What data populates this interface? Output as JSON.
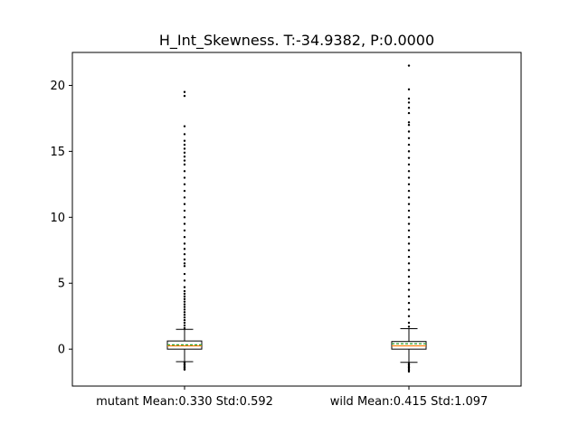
{
  "chart_data": {
    "type": "box",
    "title": "H_Int_Skewness. T:-34.9382, P:0.0000",
    "xlabel": "",
    "ylabel": "",
    "ylim": [
      -2.8,
      22.5
    ],
    "yticks": [
      0,
      5,
      10,
      15,
      20
    ],
    "grid": false,
    "categories": [
      "mutant Mean:0.330 Std:0.592",
      "wild Mean:0.415 Std:1.097"
    ],
    "boxes": [
      {
        "label": "mutant Mean:0.330 Std:0.592",
        "whisker_low": -0.95,
        "q1": 0.0,
        "median": 0.25,
        "mean": 0.33,
        "q3": 0.62,
        "whisker_high": 1.5,
        "outliers": [
          -1.0,
          -1.1,
          -1.2,
          -1.3,
          -1.4,
          -1.5,
          -1.55,
          1.6,
          1.8,
          2.0,
          2.2,
          2.4,
          2.6,
          2.8,
          3.0,
          3.2,
          3.4,
          3.6,
          3.8,
          4.0,
          4.2,
          4.4,
          4.7,
          5.2,
          5.7,
          6.3,
          6.5,
          6.8,
          7.2,
          7.6,
          8.0,
          8.5,
          9.0,
          9.5,
          10.0,
          10.5,
          11.0,
          11.5,
          12.0,
          12.5,
          13.0,
          13.5,
          14.0,
          14.3,
          14.6,
          14.9,
          15.2,
          15.5,
          15.8,
          16.3,
          16.9,
          19.2,
          19.5
        ]
      },
      {
        "label": "wild Mean:0.415 Std:1.097",
        "whisker_low": -1.0,
        "q1": 0.0,
        "median": 0.25,
        "mean": 0.415,
        "q3": 0.58,
        "whisker_high": 1.55,
        "outliers": [
          -1.1,
          -1.2,
          -1.3,
          -1.4,
          -1.5,
          -1.6,
          -1.7,
          1.7,
          2.0,
          2.5,
          3.0,
          3.5,
          4.0,
          4.5,
          5.0,
          5.5,
          6.0,
          6.5,
          7.0,
          7.5,
          8.0,
          8.5,
          9.0,
          9.5,
          10.0,
          10.5,
          11.0,
          11.5,
          12.0,
          12.5,
          13.0,
          13.5,
          14.0,
          14.5,
          15.0,
          15.5,
          16.0,
          16.5,
          17.0,
          17.2,
          17.9,
          18.3,
          18.7,
          19.0,
          19.7,
          21.5
        ]
      }
    ],
    "colors": {
      "box_edge": "#000000",
      "median": "#ff7f0e",
      "mean_line": "#2ca02c",
      "outlier": "#000000"
    }
  }
}
